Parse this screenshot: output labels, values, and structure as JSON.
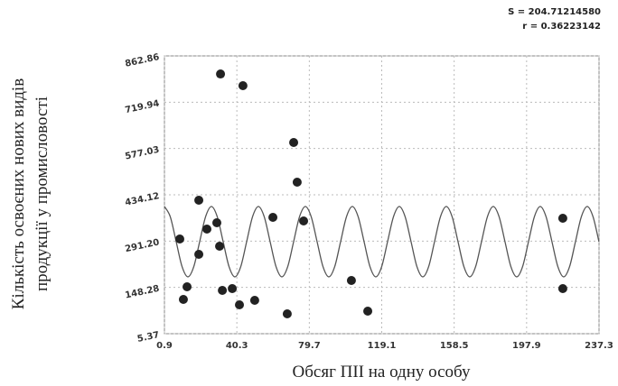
{
  "chart_data": {
    "type": "scatter",
    "annotations": [
      "S = 204.71214580",
      "r = 0.36223142"
    ],
    "x_label": "Обсяг ПІІ на одну особу",
    "y_label": [
      "Кількість освоєних нових видів",
      "продукції у промисловості"
    ],
    "xlim": [
      0.9,
      237.3
    ],
    "xticks": [
      0.9,
      40.3,
      79.7,
      119.1,
      158.5,
      197.9,
      237.3
    ],
    "ylim": [
      5.37,
      862.86
    ],
    "yticks": [
      5.37,
      148.28,
      {
        "value": 291.2,
        "label": "291.20"
      },
      434.12,
      577.03,
      719.94,
      862.86
    ],
    "grid": true,
    "series": [
      {
        "type": "scatter",
        "color": "#222222",
        "x": [
          9.25,
          11.2,
          13.2,
          19.6,
          19.6,
          24.0,
          29.4,
          30.9,
          31.4,
          32.4,
          37.8,
          41.7,
          43.6,
          50.0,
          59.9,
          67.7,
          71.2,
          73.1,
          76.6,
          102.6,
          111.5,
          217.6,
          217.6
        ],
        "values": [
          297.7,
          111.2,
          150.1,
          417.4,
          250.4,
          328.3,
          347.8,
          275.4,
          807.1,
          139.0,
          144.6,
          94.5,
          771.0,
          108.4,
          364.5,
          66.6,
          595.6,
          473.1,
          353.4,
          169.6,
          75.0,
          361.7,
          144.6
        ]
      },
      {
        "type": "line",
        "color": "#555555",
        "x": [
          0.9,
          4.09,
          7.29,
          10.48,
          13.68,
          16.87,
          20.06,
          23.26,
          26.45,
          29.65,
          32.84,
          36.03,
          39.23,
          42.42,
          45.62,
          48.81,
          52.0,
          55.2,
          58.39,
          61.59,
          64.78,
          67.97,
          71.17,
          74.36,
          77.56,
          80.75,
          83.94,
          87.14,
          90.33,
          93.53,
          96.72,
          99.91,
          103.11,
          106.3,
          109.5,
          112.69,
          115.88,
          119.08,
          122.27,
          125.47,
          128.66,
          131.85,
          135.05,
          138.24,
          141.44,
          144.63,
          147.82,
          151.02,
          154.21,
          157.41,
          160.6,
          163.79,
          166.99,
          170.18,
          173.38,
          176.57,
          179.76,
          182.96,
          186.15,
          189.35,
          192.54,
          195.73,
          198.93,
          202.12,
          205.32,
          208.51,
          211.7,
          214.9,
          218.09,
          221.29,
          224.48,
          227.67,
          230.87,
          234.06,
          237.26
        ],
        "values": [
          397.9,
          366.1,
          289.3,
          212.5,
          180.7,
          212.5,
          289.3,
          366.1,
          397.9,
          366.1,
          289.3,
          212.5,
          180.7,
          212.5,
          289.3,
          366.1,
          397.9,
          366.1,
          289.3,
          212.5,
          180.7,
          212.5,
          289.3,
          366.1,
          397.9,
          366.1,
          289.3,
          212.5,
          180.7,
          212.5,
          289.3,
          366.1,
          397.9,
          366.1,
          289.3,
          212.5,
          180.7,
          212.5,
          289.3,
          366.1,
          397.9,
          366.1,
          289.3,
          212.5,
          180.7,
          212.5,
          289.3,
          366.1,
          397.9,
          366.1,
          289.3,
          212.5,
          180.7,
          212.5,
          289.3,
          366.1,
          397.9,
          366.1,
          289.3,
          212.5,
          180.7,
          212.5,
          289.3,
          366.1,
          397.9,
          366.1,
          289.3,
          212.5,
          180.7,
          212.5,
          289.3,
          366.1,
          397.9,
          366.1,
          289.3
        ]
      }
    ]
  }
}
